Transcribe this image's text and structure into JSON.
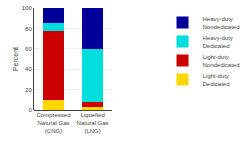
{
  "chart_data": {
    "type": "bar",
    "stacked": true,
    "grid": true,
    "categories": [
      "Compressed\nNatural Gas\n(CNG)",
      "Liquefied\nNatural Gas\n(LNG)"
    ],
    "series": [
      {
        "name": "Light-duty\nDedicated",
        "color": "#FFD700",
        "values": [
          10,
          3
        ]
      },
      {
        "name": "Light-duty\nNondedicated",
        "color": "#CC0000",
        "values": [
          67,
          5
        ]
      },
      {
        "name": "Heavy-duty\nDedicated",
        "color": "#00DDDD",
        "values": [
          8,
          52
        ]
      },
      {
        "name": "Heavy-duty\nNondedicated",
        "color": "#000099",
        "values": [
          15,
          40
        ]
      }
    ],
    "ylabel": "Percent",
    "ylim": [
      0,
      100
    ],
    "yticks": [
      0,
      20,
      40,
      60,
      80,
      100
    ]
  }
}
